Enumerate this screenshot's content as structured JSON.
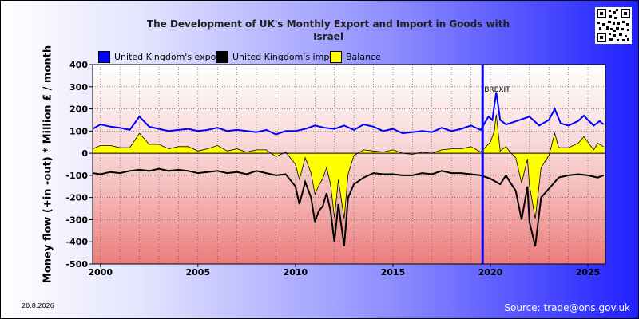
{
  "header": {
    "title_line1": "The Development of UK's Monthly Export and Import in Goods with",
    "title_line2": "Israel"
  },
  "footer": {
    "date": "20.8.2026",
    "source": "Source: trade@ons.gov.uk"
  },
  "colors": {
    "export": "#0000ff",
    "import": "#000000",
    "balance": "#ffff00",
    "marker": "#0000ff"
  },
  "chart_data": {
    "type": "line",
    "title": "The Development of UK's Monthly Export and Import in Goods with Israel",
    "ylabel": "Money flow (+in -out) * Million £ / month",
    "xlabel": "",
    "ylim": [
      -500,
      400
    ],
    "xlim": [
      1999.6,
      2025.9
    ],
    "yticks": [
      -500,
      -400,
      -300,
      -200,
      -100,
      0,
      100,
      200,
      300,
      400
    ],
    "xticks": [
      2000,
      2005,
      2010,
      2015,
      2020,
      2025
    ],
    "grid": true,
    "legend_position": "top-left",
    "annotations": [
      {
        "label": "BREXIT",
        "x": 2019.6
      }
    ],
    "sampling": "approximate values read at sample dates",
    "series": [
      {
        "name": "United Kingdom's export",
        "color": "#0000ff",
        "x": [
          1999.6,
          2000.0,
          2000.5,
          2001.0,
          2001.5,
          2002.0,
          2002.5,
          2003.0,
          2003.5,
          2004.0,
          2004.5,
          2005.0,
          2005.5,
          2006.0,
          2006.5,
          2007.0,
          2007.5,
          2008.0,
          2008.5,
          2009.0,
          2009.5,
          2010.0,
          2010.5,
          2011.0,
          2011.5,
          2012.0,
          2012.5,
          2013.0,
          2013.5,
          2014.0,
          2014.5,
          2015.0,
          2015.5,
          2016.0,
          2016.5,
          2017.0,
          2017.5,
          2018.0,
          2018.5,
          2019.0,
          2019.5,
          2019.9,
          2020.1,
          2020.2,
          2020.3,
          2020.5,
          2020.8,
          2021.0,
          2021.5,
          2022.0,
          2022.5,
          2023.0,
          2023.3,
          2023.6,
          2024.0,
          2024.5,
          2024.8,
          2025.0,
          2025.3,
          2025.6,
          2025.8
        ],
        "y": [
          110,
          130,
          120,
          115,
          105,
          165,
          120,
          110,
          100,
          105,
          110,
          100,
          105,
          115,
          100,
          105,
          100,
          95,
          105,
          85,
          100,
          100,
          110,
          125,
          115,
          110,
          125,
          105,
          130,
          120,
          100,
          110,
          90,
          95,
          100,
          95,
          115,
          100,
          110,
          125,
          105,
          165,
          150,
          215,
          275,
          150,
          130,
          135,
          150,
          165,
          125,
          150,
          200,
          135,
          125,
          145,
          170,
          150,
          125,
          145,
          130
        ]
      },
      {
        "name": "United Kingdom's import",
        "color": "#000000",
        "x": [
          1999.6,
          2000.0,
          2000.5,
          2001.0,
          2001.5,
          2002.0,
          2002.5,
          2003.0,
          2003.5,
          2004.0,
          2004.5,
          2005.0,
          2005.5,
          2006.0,
          2006.5,
          2007.0,
          2007.5,
          2008.0,
          2008.5,
          2009.0,
          2009.5,
          2010.0,
          2010.2,
          2010.5,
          2010.8,
          2011.0,
          2011.2,
          2011.4,
          2011.6,
          2011.8,
          2012.0,
          2012.2,
          2012.5,
          2012.7,
          2013.0,
          2013.5,
          2014.0,
          2014.5,
          2015.0,
          2015.5,
          2016.0,
          2016.5,
          2017.0,
          2017.5,
          2018.0,
          2018.5,
          2019.0,
          2019.5,
          2020.0,
          2020.5,
          2020.8,
          2021.0,
          2021.3,
          2021.6,
          2021.9,
          2022.0,
          2022.3,
          2022.6,
          2023.0,
          2023.5,
          2024.0,
          2024.5,
          2025.0,
          2025.5,
          2025.8
        ],
        "y": [
          -90,
          -95,
          -85,
          -90,
          -80,
          -75,
          -80,
          -70,
          -80,
          -75,
          -80,
          -90,
          -85,
          -80,
          -90,
          -85,
          -95,
          -80,
          -90,
          -100,
          -95,
          -150,
          -230,
          -130,
          -200,
          -310,
          -260,
          -240,
          -180,
          -260,
          -400,
          -230,
          -420,
          -200,
          -140,
          -110,
          -90,
          -95,
          -95,
          -100,
          -100,
          -90,
          -95,
          -80,
          -90,
          -90,
          -95,
          -100,
          -115,
          -140,
          -100,
          -130,
          -170,
          -300,
          -150,
          -310,
          -420,
          -200,
          -160,
          -110,
          -100,
          -95,
          -100,
          -110,
          -100
        ]
      },
      {
        "name": "Balance",
        "color": "#ffff00",
        "x": [
          1999.6,
          2000.0,
          2000.5,
          2001.0,
          2001.5,
          2002.0,
          2002.5,
          2003.0,
          2003.5,
          2004.0,
          2004.5,
          2005.0,
          2005.5,
          2006.0,
          2006.5,
          2007.0,
          2007.5,
          2008.0,
          2008.5,
          2009.0,
          2009.5,
          2010.0,
          2010.2,
          2010.5,
          2010.8,
          2011.0,
          2011.2,
          2011.4,
          2011.6,
          2011.8,
          2012.0,
          2012.2,
          2012.5,
          2012.7,
          2013.0,
          2013.5,
          2014.0,
          2014.5,
          2015.0,
          2015.5,
          2016.0,
          2016.5,
          2017.0,
          2017.5,
          2018.0,
          2018.5,
          2019.0,
          2019.5,
          2020.0,
          2020.2,
          2020.3,
          2020.5,
          2020.8,
          2021.0,
          2021.3,
          2021.6,
          2021.9,
          2022.0,
          2022.3,
          2022.6,
          2023.0,
          2023.3,
          2023.5,
          2024.0,
          2024.5,
          2024.8,
          2025.0,
          2025.3,
          2025.5,
          2025.8
        ],
        "y": [
          20,
          35,
          35,
          25,
          25,
          90,
          40,
          40,
          20,
          30,
          30,
          10,
          20,
          35,
          10,
          20,
          5,
          15,
          15,
          -15,
          5,
          -50,
          -120,
          -20,
          -90,
          -185,
          -145,
          -115,
          -65,
          -140,
          -290,
          -120,
          -295,
          -95,
          -10,
          15,
          10,
          5,
          15,
          0,
          -5,
          5,
          0,
          15,
          20,
          20,
          30,
          5,
          50,
          100,
          175,
          10,
          30,
          5,
          -20,
          -135,
          -25,
          -145,
          -295,
          -65,
          -10,
          90,
          25,
          25,
          45,
          75,
          50,
          15,
          45,
          30
        ]
      }
    ]
  }
}
